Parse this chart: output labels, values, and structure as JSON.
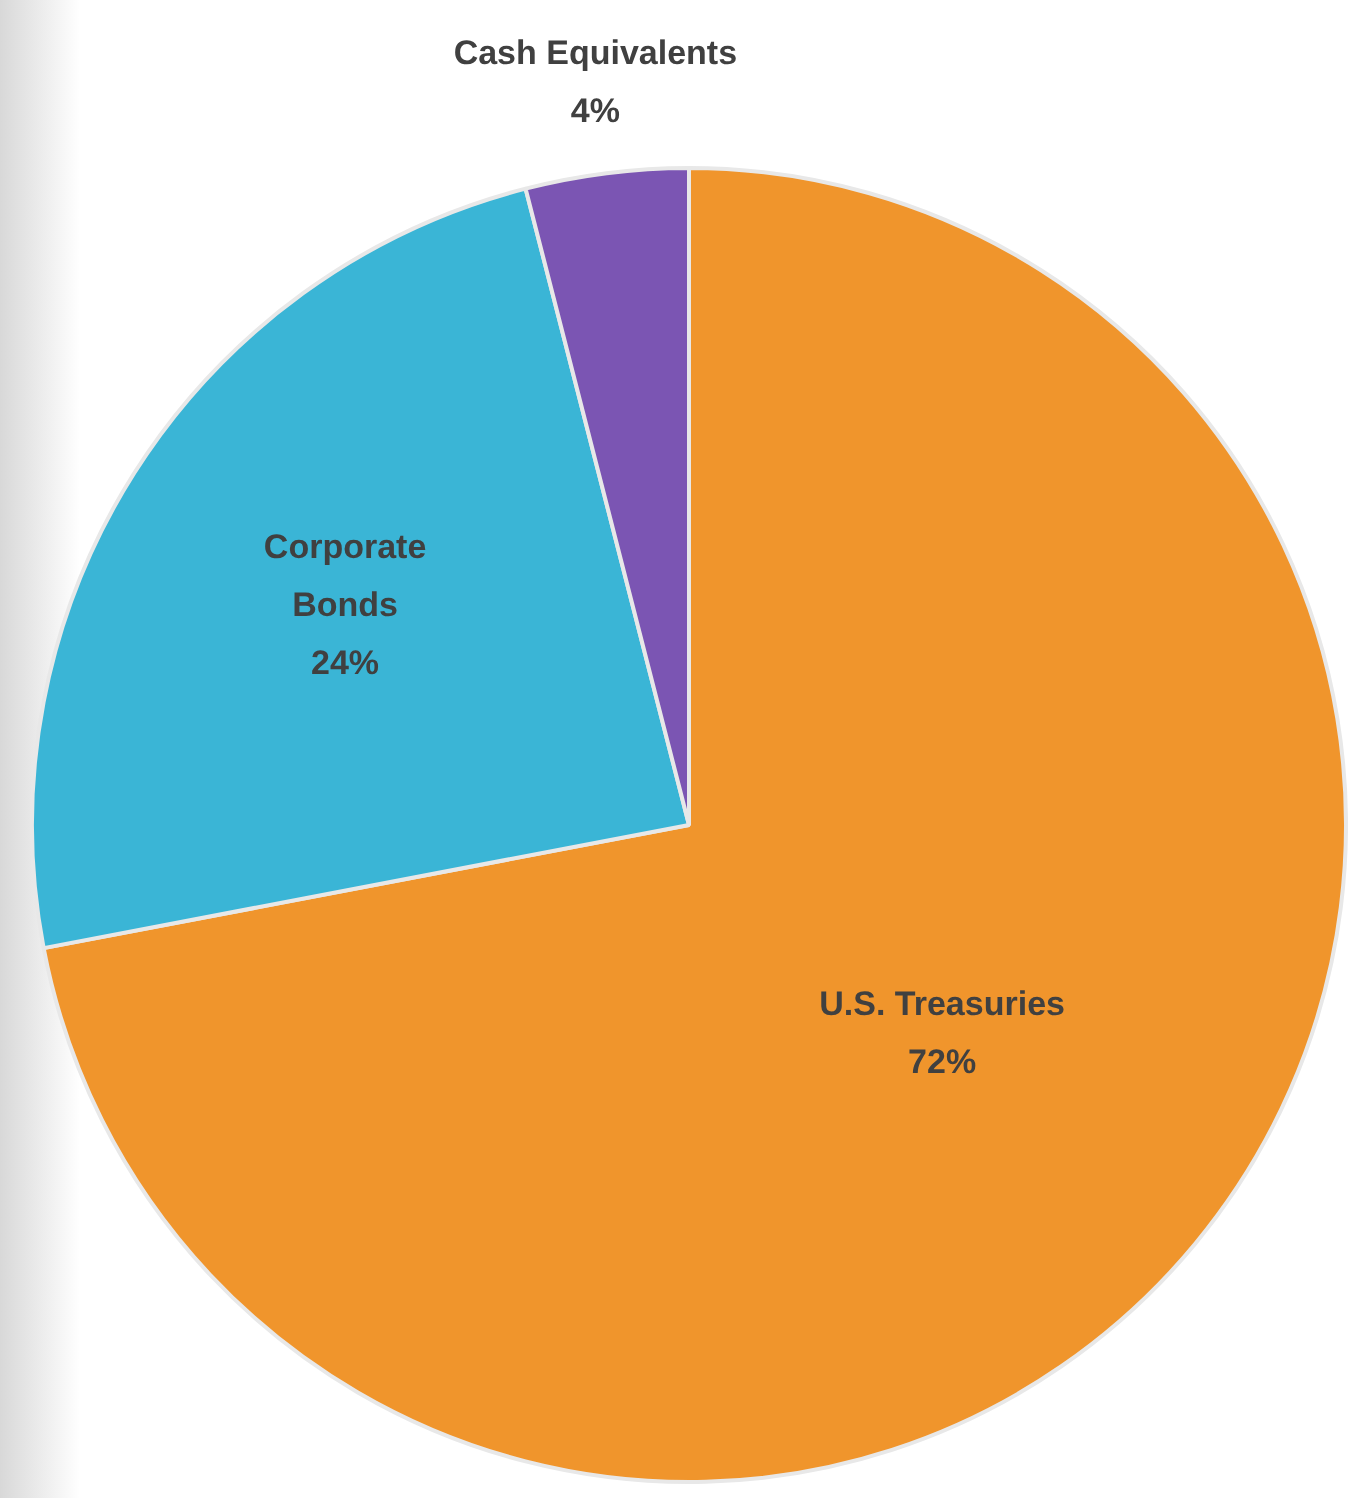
{
  "chart_data": {
    "type": "pie",
    "categories": [
      "U.S. Treasuries",
      "Corporate Bonds",
      "Cash Equivalents"
    ],
    "values": [
      72,
      24,
      4
    ],
    "colors": [
      "#f0952c",
      "#3ab5d6",
      "#7b55b3"
    ],
    "value_labels": [
      "72%",
      "24%",
      "4%"
    ],
    "legend": false
  }
}
